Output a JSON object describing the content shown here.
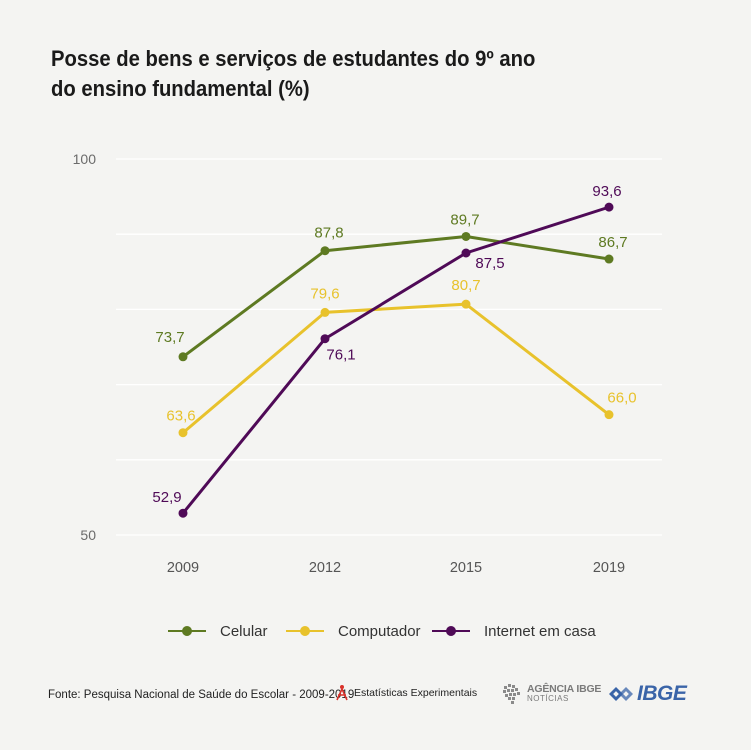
{
  "title_line1": "Posse de bens e serviços de estudantes do 9º ano",
  "title_line2": "do ensino fundamental (%)",
  "chart_data": {
    "type": "line",
    "title": "Posse de bens e serviços de estudantes do 9º ano do ensino fundamental (%)",
    "categories": [
      "2009",
      "2012",
      "2015",
      "2019"
    ],
    "ylim": [
      50,
      100
    ],
    "y_tick_labels": [
      "100",
      "50"
    ],
    "grid": true,
    "legend_position": "bottom",
    "series": [
      {
        "name": "Celular",
        "color": "#5e7a22",
        "values": [
          73.7,
          87.8,
          89.7,
          86.7
        ],
        "labels": [
          "73,7",
          "87,8",
          "89,7",
          "86,7"
        ]
      },
      {
        "name": "Computador",
        "color": "#e8c22c",
        "values": [
          63.6,
          79.6,
          80.7,
          66.0
        ],
        "labels": [
          "63,6",
          "79,6",
          "80,7",
          "66,0"
        ]
      },
      {
        "name": "Internet em casa",
        "color": "#4f0a57",
        "values": [
          52.9,
          76.1,
          87.5,
          93.6
        ],
        "labels": [
          "52,9",
          "76,1",
          "87,5",
          "93,6"
        ]
      }
    ]
  },
  "footer": {
    "source": "Fonte: Pesquisa Nacional de Saúde do Escolar - 2009-2019",
    "experimental": "Estatísticas Experimentais",
    "agencia_main": "AGÊNCIA IBGE",
    "agencia_sub": "NOTÍCIAS",
    "ibge": "IBGE"
  }
}
